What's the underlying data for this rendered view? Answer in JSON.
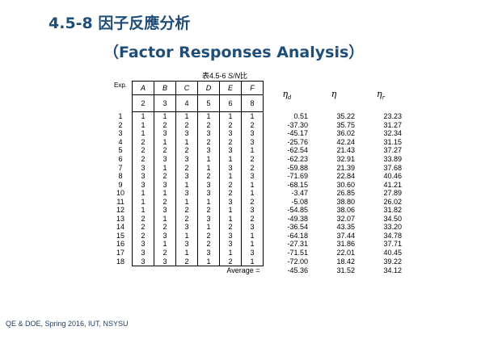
{
  "title_line1": "4.5-8  因子反應分析",
  "title_line2": "（Factor Responses Analysis）",
  "caption": {
    "prefix": "表4.5-6  ",
    "italic": "S/N",
    "suffix": "比"
  },
  "footer": "QE & DOE, Spring 2016, IUT, NSYSU",
  "table": {
    "exp_header": "Exp.",
    "factors": [
      "A",
      "B",
      "C",
      "D",
      "E",
      "F"
    ],
    "levels": [
      "2",
      "3",
      "4",
      "5",
      "6",
      "8"
    ],
    "response_headers": [
      {
        "symbol": "η",
        "sub": "d"
      },
      {
        "symbol": "η",
        "sub": ""
      },
      {
        "symbol": "η",
        "sub": "r"
      }
    ],
    "rows": [
      {
        "exp": "1",
        "f": [
          "1",
          "1",
          "1",
          "1",
          "1",
          "1"
        ],
        "r": [
          "0.51",
          "35.22",
          "23.23"
        ]
      },
      {
        "exp": "2",
        "f": [
          "1",
          "2",
          "2",
          "2",
          "2",
          "2"
        ],
        "r": [
          "-37.30",
          "35.75",
          "31.27"
        ]
      },
      {
        "exp": "3",
        "f": [
          "1",
          "3",
          "3",
          "3",
          "3",
          "3"
        ],
        "r": [
          "-45.17",
          "36.02",
          "32.34"
        ]
      },
      {
        "exp": "4",
        "f": [
          "2",
          "1",
          "1",
          "2",
          "2",
          "3"
        ],
        "r": [
          "-25.76",
          "42.24",
          "31.15"
        ]
      },
      {
        "exp": "5",
        "f": [
          "2",
          "2",
          "2",
          "3",
          "3",
          "1"
        ],
        "r": [
          "-62.54",
          "21.43",
          "37.27"
        ]
      },
      {
        "exp": "6",
        "f": [
          "2",
          "3",
          "3",
          "1",
          "1",
          "2"
        ],
        "r": [
          "-62.23",
          "32.91",
          "33.89"
        ]
      },
      {
        "exp": "7",
        "f": [
          "3",
          "1",
          "2",
          "1",
          "3",
          "2"
        ],
        "r": [
          "-59.88",
          "21.39",
          "37.68"
        ]
      },
      {
        "exp": "8",
        "f": [
          "3",
          "2",
          "3",
          "2",
          "1",
          "3"
        ],
        "r": [
          "-71.69",
          "22.84",
          "40.46"
        ]
      },
      {
        "exp": "9",
        "f": [
          "3",
          "3",
          "1",
          "3",
          "2",
          "1"
        ],
        "r": [
          "-68.15",
          "30.60",
          "41.21"
        ]
      },
      {
        "exp": "10",
        "f": [
          "1",
          "1",
          "3",
          "3",
          "2",
          "1"
        ],
        "r": [
          "-3.47",
          "26.85",
          "27.89"
        ]
      },
      {
        "exp": "11",
        "f": [
          "1",
          "2",
          "1",
          "1",
          "3",
          "2"
        ],
        "r": [
          "-5.08",
          "38.80",
          "26.02"
        ]
      },
      {
        "exp": "12",
        "f": [
          "1",
          "3",
          "2",
          "2",
          "1",
          "3"
        ],
        "r": [
          "-54.85",
          "38.06",
          "31.82"
        ]
      },
      {
        "exp": "13",
        "f": [
          "2",
          "1",
          "2",
          "3",
          "1",
          "2"
        ],
        "r": [
          "-49.38",
          "32.07",
          "34.50"
        ]
      },
      {
        "exp": "14",
        "f": [
          "2",
          "2",
          "3",
          "1",
          "2",
          "3"
        ],
        "r": [
          "-36.54",
          "43.35",
          "33.20"
        ]
      },
      {
        "exp": "15",
        "f": [
          "2",
          "3",
          "1",
          "2",
          "3",
          "1"
        ],
        "r": [
          "-64.18",
          "37.44",
          "34.78"
        ]
      },
      {
        "exp": "16",
        "f": [
          "3",
          "1",
          "3",
          "2",
          "3",
          "1"
        ],
        "r": [
          "-27.31",
          "31.86",
          "37.71"
        ]
      },
      {
        "exp": "17",
        "f": [
          "3",
          "2",
          "1",
          "3",
          "1",
          "3"
        ],
        "r": [
          "-71.51",
          "22.01",
          "40.45"
        ]
      },
      {
        "exp": "18",
        "f": [
          "3",
          "3",
          "2",
          "1",
          "2",
          "1"
        ],
        "r": [
          "-72.00",
          "18.42",
          "39.22"
        ]
      }
    ],
    "average_label": "Average =",
    "average": [
      "-45.36",
      "31.52",
      "34.12"
    ]
  }
}
